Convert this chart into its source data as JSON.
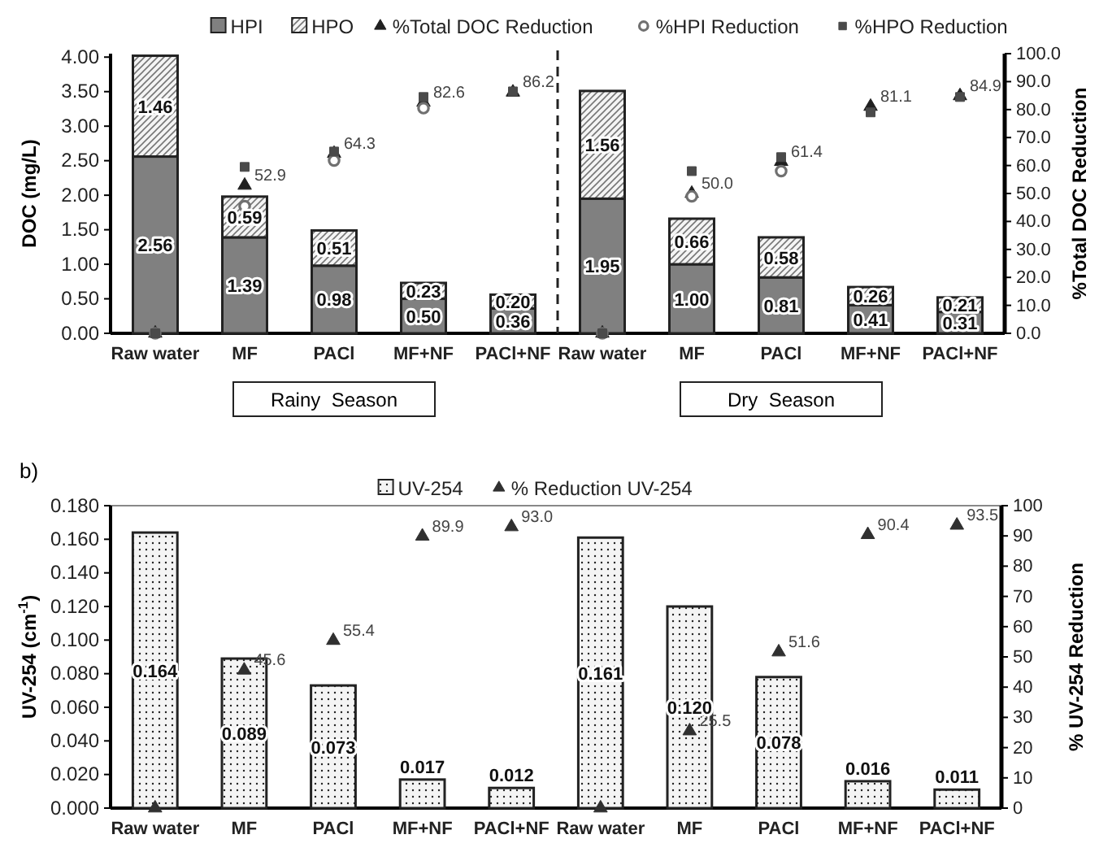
{
  "chart_data": [
    {
      "type": "bar",
      "stacked": true,
      "ylabel": "DOC (mg/L)",
      "y2label": "%Total DOC Reduction",
      "categories": [
        "Raw water",
        "MF",
        "PACl",
        "MF+NF",
        "PACl+NF",
        "Raw water",
        "MF",
        "PACl",
        "MF+NF",
        "PACl+NF"
      ],
      "series": [
        {
          "name": "HPI",
          "type": "bar",
          "color": "#808080",
          "values": [
            2.56,
            1.39,
            0.98,
            0.5,
            0.36,
            1.95,
            1.0,
            0.81,
            0.41,
            0.31
          ],
          "value_labels": [
            "2.56",
            "1.39",
            "0.98",
            "0.50",
            "0.36",
            "1.95",
            "1.00",
            "0.81",
            "0.41",
            "0.31"
          ]
        },
        {
          "name": "HPO",
          "type": "bar",
          "color": "#222222",
          "values": [
            1.46,
            0.59,
            0.51,
            0.23,
            0.2,
            1.56,
            0.66,
            0.58,
            0.26,
            0.21
          ],
          "value_labels": [
            "1.46",
            "0.59",
            "0.51",
            "0.23",
            "0.20",
            "1.56",
            "0.66",
            "0.58",
            "0.26",
            "0.21"
          ]
        },
        {
          "name": "%Total DOC Reduction",
          "type": "scatter",
          "axis": "y2",
          "marker": "triangle",
          "color": "#202020",
          "values": [
            0,
            52.9,
            64.3,
            82.6,
            86.2,
            0,
            50.0,
            61.4,
            81.1,
            84.9
          ],
          "value_labels": [
            null,
            "52.9",
            "64.3",
            "82.6",
            "86.2",
            null,
            "50.0",
            "61.4",
            "81.1",
            "84.9"
          ]
        },
        {
          "name": "%HPI Reduction",
          "type": "scatter",
          "axis": "y2",
          "marker": "circle",
          "color": "#707070",
          "values": [
            0,
            45.5,
            61.8,
            80.5,
            null,
            0,
            49,
            58,
            null,
            null
          ]
        },
        {
          "name": "%HPO Reduction",
          "type": "scatter",
          "axis": "y2",
          "marker": "square",
          "color": "#4a4a4a",
          "values": [
            0,
            59.5,
            65,
            84.5,
            86.5,
            0,
            58,
            63,
            79,
            84.5
          ]
        }
      ],
      "ylim": [
        0,
        4.05
      ],
      "yticks": [
        {
          "value": 0,
          "label": "0.00"
        },
        {
          "value": 0.5,
          "label": "0.50"
        },
        {
          "value": 1,
          "label": "1.00"
        },
        {
          "value": 1.5,
          "label": "1.50"
        },
        {
          "value": 2,
          "label": "2.00"
        },
        {
          "value": 2.5,
          "label": "2.50"
        },
        {
          "value": 3,
          "label": "3.00"
        },
        {
          "value": 3.5,
          "label": "3.50"
        },
        {
          "value": 4,
          "label": "4.00"
        }
      ],
      "y2lim": [
        0,
        100
      ],
      "y2ticks": [
        {
          "value": 0,
          "label": "0.0"
        },
        {
          "value": 10,
          "label": "10.0"
        },
        {
          "value": 20,
          "label": "20.0"
        },
        {
          "value": 30,
          "label": "30.0"
        },
        {
          "value": 40,
          "label": "40.0"
        },
        {
          "value": 50,
          "label": "50.0"
        },
        {
          "value": 60,
          "label": "60.0"
        },
        {
          "value": 70,
          "label": "70.0"
        },
        {
          "value": 80,
          "label": "80.0"
        },
        {
          "value": 90,
          "label": "90.0"
        },
        {
          "value": 100,
          "label": "100.0"
        }
      ],
      "annotations": [
        "Rainy  Season",
        "Dry  Season"
      ],
      "legend": "top",
      "grid": false
    },
    {
      "type": "bar",
      "title": "b)",
      "ylabel": "UV-254 (cm$^{-1}$)",
      "y2label": "% UV-254 Reduction",
      "categories": [
        "Raw water",
        "MF",
        "PACl",
        "MF+NF",
        "PACl+NF",
        "Raw water",
        "MF",
        "PACl",
        "MF+NF",
        "PACl+NF"
      ],
      "series": [
        {
          "name": "UV-254",
          "type": "bar",
          "color": "#222222",
          "values": [
            0.164,
            0.089,
            0.073,
            0.017,
            0.012,
            0.161,
            0.12,
            0.078,
            0.016,
            0.011
          ],
          "value_labels": [
            "0.164",
            "0.089",
            "0.073",
            "0.017",
            "0.012",
            "0.161",
            "0.120",
            "0.078",
            "0.016",
            "0.011"
          ]
        },
        {
          "name": "% Reduction UV-254",
          "type": "scatter",
          "axis": "y2",
          "marker": "triangle",
          "color": "#303030",
          "values": [
            0,
            45.6,
            55.4,
            89.9,
            93.0,
            0,
            25.5,
            51.6,
            90.4,
            93.5
          ],
          "value_labels": [
            null,
            "45.6",
            "55.4",
            "89.9",
            "93.0",
            null,
            "25.5",
            "51.6",
            "90.4",
            "93.5"
          ]
        }
      ],
      "ylim": [
        0,
        0.18
      ],
      "yticks": [
        {
          "value": 0,
          "label": "0.000"
        },
        {
          "value": 0.02,
          "label": "0.020"
        },
        {
          "value": 0.04,
          "label": "0.040"
        },
        {
          "value": 0.06,
          "label": "0.060"
        },
        {
          "value": 0.08,
          "label": "0.080"
        },
        {
          "value": 0.1,
          "label": "0.100"
        },
        {
          "value": 0.12,
          "label": "0.120"
        },
        {
          "value": 0.14,
          "label": "0.140"
        },
        {
          "value": 0.16,
          "label": "0.160"
        },
        {
          "value": 0.18,
          "label": "0.180"
        }
      ],
      "y2lim": [
        0,
        100
      ],
      "y2ticks": [
        0,
        10,
        20,
        30,
        40,
        50,
        60,
        70,
        80,
        90,
        100
      ],
      "legend": "top",
      "grid": false
    }
  ]
}
